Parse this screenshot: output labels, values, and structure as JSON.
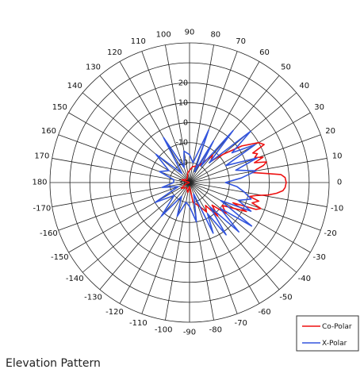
{
  "caption": "Elevation Pattern",
  "chart_data": {
    "type": "polar",
    "angle_ticks_deg": [
      0,
      10,
      20,
      30,
      40,
      50,
      60,
      70,
      80,
      90,
      100,
      110,
      120,
      130,
      140,
      150,
      160,
      170,
      180,
      -170,
      -160,
      -150,
      -140,
      -130,
      -120,
      -110,
      -100,
      -90,
      -80,
      -70,
      -60,
      -50,
      -40,
      -30,
      -20,
      -10
    ],
    "radial_ticks": [
      20,
      10,
      0,
      -10,
      -20,
      -30
    ],
    "radial_range": [
      -30,
      40
    ],
    "grid": true,
    "legend_position": "bottom-right",
    "series": [
      {
        "name": "Co-Polar",
        "color": "#ee1111",
        "angles": [
          -180,
          -160,
          -145,
          -120,
          -100,
          -90,
          -80,
          -70,
          -60,
          -55,
          -50,
          -45,
          -40,
          -35,
          -30,
          -27,
          -25,
          -22,
          -20,
          -18,
          -15,
          -13,
          -11,
          -9,
          -7,
          -5,
          -3,
          0,
          3,
          5,
          7,
          9,
          11,
          13,
          15,
          17,
          19,
          21,
          23,
          25,
          27,
          30,
          35,
          40,
          45,
          50,
          60,
          80,
          100,
          130,
          160,
          180
        ],
        "values": [
          -30,
          -28,
          -25,
          -27,
          -25,
          -28,
          -20,
          -18,
          -13,
          -16,
          -8,
          -14,
          -6,
          -10,
          -4,
          2,
          -6,
          6,
          8,
          3,
          6,
          1,
          4,
          10,
          14,
          17,
          18,
          18.5,
          18,
          16,
          8,
          2,
          4,
          8,
          10,
          4,
          9,
          5,
          7,
          5,
          12,
          10,
          2,
          -8,
          -15,
          -12,
          -20,
          -22,
          -25,
          -28,
          -26,
          -30
        ]
      },
      {
        "name": "X-Polar",
        "color": "#3355dd",
        "angles": [
          -180,
          -170,
          -160,
          -150,
          -140,
          -130,
          -120,
          -110,
          -100,
          -90,
          -80,
          -70,
          -65,
          -60,
          -55,
          -50,
          -45,
          -40,
          -35,
          -30,
          -25,
          -20,
          -15,
          -10,
          -5,
          0,
          5,
          10,
          15,
          20,
          25,
          30,
          35,
          40,
          45,
          50,
          55,
          60,
          65,
          70,
          80,
          90,
          100,
          110,
          120,
          130,
          140,
          150,
          160,
          170,
          180
        ],
        "values": [
          -22,
          -16,
          -24,
          -10,
          -20,
          -8,
          -22,
          -12,
          -20,
          -18,
          -10,
          -24,
          -2,
          -12,
          2,
          -14,
          5,
          -10,
          8,
          -12,
          4,
          -4,
          2,
          -2,
          -6,
          -12,
          -4,
          4,
          -6,
          6,
          -10,
          8,
          -4,
          10,
          -16,
          4,
          -20,
          -6,
          -24,
          -2,
          -20,
          -16,
          -14,
          -22,
          -4,
          -24,
          -8,
          -18,
          -14,
          -22,
          -22
        ]
      }
    ]
  }
}
